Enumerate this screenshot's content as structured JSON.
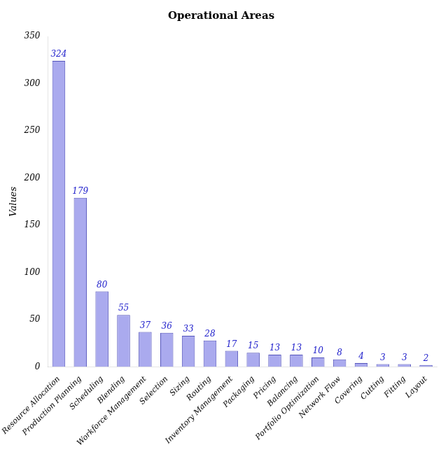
{
  "chart_data": {
    "type": "bar",
    "title": "Operational Areas",
    "ylabel": "Values",
    "categories": [
      "Resource Allocation",
      "Production Planning",
      "Scheduling",
      "Blending",
      "Workforce Management",
      "Selection",
      "Sizing",
      "Routing",
      "Inventory Management",
      "Packaging",
      "Pricing",
      "Balancing",
      "Portfolio Optimization",
      "Network Flow",
      "Covering",
      "Cutting",
      "Fitting",
      "Layout"
    ],
    "values": [
      324,
      179,
      80,
      55,
      37,
      36,
      33,
      28,
      17,
      15,
      13,
      13,
      10,
      8,
      4,
      3,
      3,
      2
    ],
    "color": "#aaaaee",
    "ylim": [
      0,
      350
    ],
    "yticks": [
      0,
      50,
      100,
      150,
      200,
      250,
      300,
      350
    ],
    "grid": false,
    "data_labels": true
  }
}
